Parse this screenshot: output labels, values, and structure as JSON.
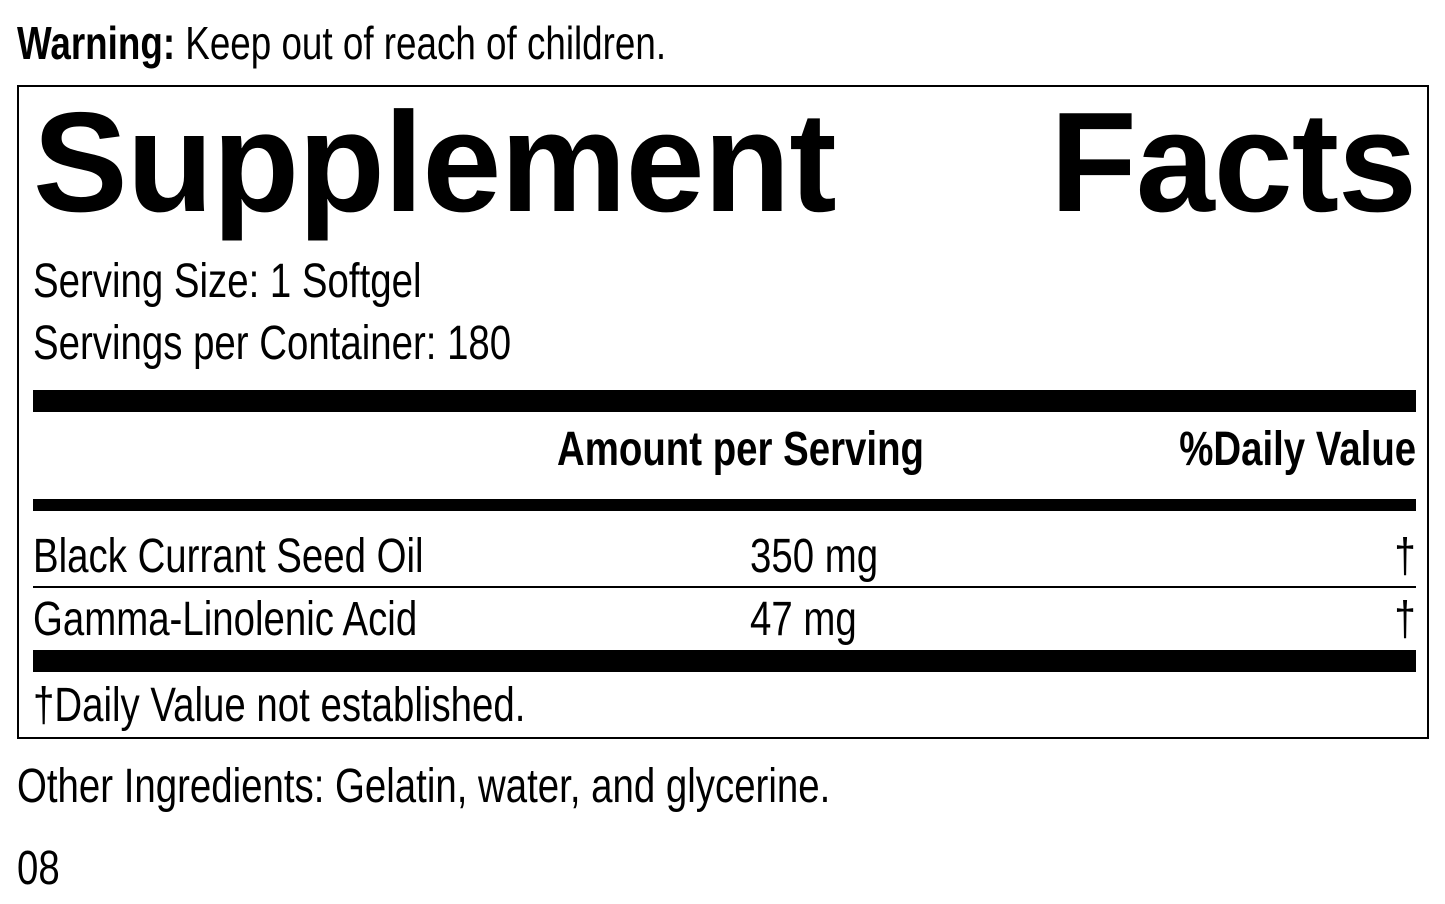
{
  "warning": {
    "label": "Warning:",
    "text": " Keep out of reach of children."
  },
  "panel": {
    "title_word1": "Supplement",
    "title_word2": "Facts",
    "serving_size": "Serving Size: 1 Softgel",
    "servings_per_container": "Servings per Container: 180",
    "header": {
      "amount": "Amount per Serving",
      "daily_value": "%Daily Value"
    },
    "rows": [
      {
        "name": "Black Currant Seed Oil",
        "amount": "350 mg",
        "dv": "†"
      },
      {
        "name": "Gamma-Linolenic Acid",
        "amount": "47 mg",
        "dv": "†"
      }
    ],
    "footnote": "†Daily Value not established."
  },
  "other_ingredients": "Other Ingredients: Gelatin, water, and glycerine.",
  "code": "08"
}
